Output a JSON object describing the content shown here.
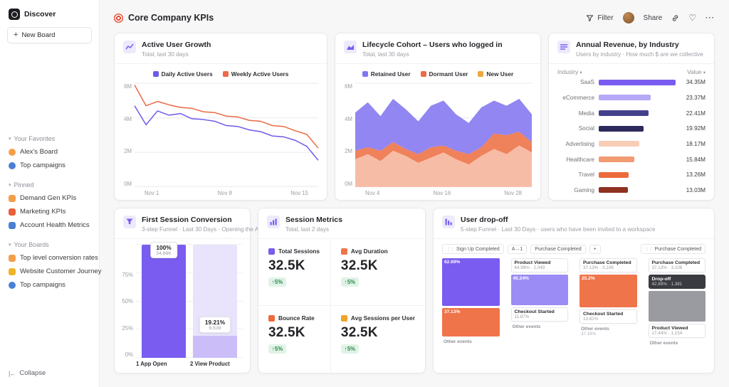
{
  "sidebar": {
    "discover_label": "Discover",
    "new_board_label": "New Board",
    "collapse_label": "Collapse",
    "sections": [
      {
        "title": "Your Favorites",
        "items": [
          {
            "label": "Alex's Board",
            "icon": "board-icon",
            "color": "#f59e49",
            "shape": "circle"
          },
          {
            "label": "Top campaigns",
            "icon": "campaign-icon",
            "color": "#4a7fd4",
            "shape": "circle"
          }
        ]
      },
      {
        "title": "Pinned",
        "items": [
          {
            "label": "Demand Gen KPIs",
            "icon": "folder-icon",
            "color": "#f59e49",
            "shape": "square"
          },
          {
            "label": "Marketing KPIs",
            "icon": "chart-icon",
            "color": "#e8603c",
            "shape": "square"
          },
          {
            "label": "Account Health Metrics",
            "icon": "health-icon",
            "color": "#4a7fd4",
            "shape": "square"
          }
        ]
      },
      {
        "title": "Your Boards",
        "items": [
          {
            "label": "Top level conversion rates",
            "icon": "funnel-icon",
            "color": "#f59e49",
            "shape": "square"
          },
          {
            "label": "Website Customer Journey",
            "icon": "journey-icon",
            "color": "#f0b429",
            "shape": "square"
          },
          {
            "label": "Top campaigns",
            "icon": "campaign-icon",
            "color": "#4a7fd4",
            "shape": "circle"
          }
        ]
      }
    ]
  },
  "header": {
    "title": "Core Company KPIs",
    "filter_label": "Filter",
    "share_label": "Share"
  },
  "cards": {
    "active": {
      "title": "Active User Growth",
      "subtitle": "Total, last 30 days"
    },
    "lifecycle": {
      "title": "Lifecycle Cohort – Users who logged in",
      "subtitle": "Total, last 30 days"
    },
    "revenue": {
      "title": "Annual Revenue, by Industry",
      "subtitle": "Users by industry · How much $ are we collective",
      "col_industry": "Industry",
      "col_value": "Value"
    },
    "funnel": {
      "title": "First Session Conversion",
      "subtitle": "3-step Funnel · Last 30 Days · Opening the A..."
    },
    "metrics": {
      "title": "Session Metrics",
      "subtitle": "Total, last 2 days"
    },
    "dropoff": {
      "title": "User drop-off",
      "subtitle": "5-step Funnel · Last 30 Days · users who have been invited to a workspace"
    }
  },
  "chart_data": [
    {
      "id": "active_user_growth",
      "type": "line",
      "title": "Active User Growth",
      "x_tick_labels": [
        "Nov 1",
        "Nov 8",
        "Nov 15"
      ],
      "y_tick_labels": [
        "6M",
        "4M",
        "2M",
        "0M"
      ],
      "ymax": 6,
      "series": [
        {
          "name": "Daily Active Users",
          "color": "#6d5be8",
          "values": [
            4.7,
            3.6,
            4.4,
            4.15,
            4.25,
            3.95,
            3.9,
            3.8,
            3.55,
            3.5,
            3.3,
            3.2,
            2.95,
            2.9,
            2.7,
            2.35,
            1.55
          ]
        },
        {
          "name": "Weekly Active Users",
          "color": "#ec6a45",
          "values": [
            5.9,
            4.7,
            4.95,
            4.75,
            4.6,
            4.55,
            4.35,
            4.3,
            4.1,
            4.05,
            3.85,
            3.8,
            3.55,
            3.5,
            3.25,
            3.05,
            2.25
          ]
        }
      ]
    },
    {
      "id": "lifecycle_cohort",
      "type": "area",
      "title": "Lifecycle Cohort – Users who logged in",
      "x_tick_labels": [
        "Nov 4",
        "Nov 16",
        "Nov 28"
      ],
      "y_tick_labels": [
        "6M",
        "4M",
        "2M",
        "0M"
      ],
      "ymax": 6,
      "legend": [
        {
          "name": "Retained User",
          "color": "#8276f0"
        },
        {
          "name": "Dormant User",
          "color": "#ec6a45"
        },
        {
          "name": "New User",
          "color": "#f2a53d"
        }
      ],
      "series_bottom_to_top": [
        {
          "name": "New User",
          "color": "#f7bca6",
          "values": [
            1.6,
            1.9,
            1.5,
            2.1,
            1.8,
            1.4,
            1.7,
            2.0,
            1.6,
            1.3,
            1.8,
            2.2,
            1.9,
            2.4,
            2.0
          ]
        },
        {
          "name": "Dormant User",
          "color": "#ef815b",
          "values": [
            0.5,
            0.4,
            0.6,
            0.5,
            0.4,
            0.5,
            0.6,
            0.4,
            0.5,
            0.6,
            0.5,
            0.9,
            1.1,
            0.8,
            0.6
          ]
        },
        {
          "name": "Retained User",
          "color": "#9186f2",
          "values": [
            2.2,
            2.6,
            2.0,
            2.5,
            2.3,
            1.9,
            2.4,
            2.6,
            2.1,
            1.8,
            2.3,
            1.9,
            1.7,
            1.9,
            1.6
          ]
        }
      ]
    },
    {
      "id": "annual_revenue",
      "type": "bar",
      "title": "Annual Revenue, by Industry",
      "max": 34.35,
      "rows": [
        {
          "label": "SaaS",
          "value": 34.35,
          "value_label": "34.35M",
          "color": "#7a5cf0"
        },
        {
          "label": "eCommerce",
          "value": 23.37,
          "value_label": "23.37M",
          "color": "#b7a8f8"
        },
        {
          "label": "Media",
          "value": 22.41,
          "value_label": "22.41M",
          "color": "#45408c"
        },
        {
          "label": "Social",
          "value": 19.92,
          "value_label": "19.92M",
          "color": "#2c2a5c"
        },
        {
          "label": "Advertising",
          "value": 18.17,
          "value_label": "18.17M",
          "color": "#f8cdb6"
        },
        {
          "label": "Healthcare",
          "value": 15.84,
          "value_label": "15.84M",
          "color": "#f29b72"
        },
        {
          "label": "Travel",
          "value": 13.26,
          "value_label": "13.26M",
          "color": "#ec6a3c"
        },
        {
          "label": "Gaming",
          "value": 13.03,
          "value_label": "13.03M",
          "color": "#8e3120"
        }
      ]
    },
    {
      "id": "first_session_conversion",
      "type": "funnel-bar",
      "y_tick_labels": [
        "75%",
        "50%",
        "25%",
        "0%"
      ],
      "steps": [
        {
          "label": "1 App Open",
          "pct": 100,
          "pct_label": "100%",
          "value_label": "34.88K"
        },
        {
          "label": "2 View Product",
          "pct": 19.21,
          "pct_label": "19.21%",
          "value_label": "6,539"
        }
      ]
    },
    {
      "id": "session_metrics",
      "type": "metrics",
      "items": [
        {
          "label": "Total Sessions",
          "color": "#7a5cf0",
          "value": "32.5K",
          "change": "↑5%"
        },
        {
          "label": "Avg Duration",
          "color": "#f0744a",
          "value": "32.5K",
          "change": "↑5%"
        },
        {
          "label": "Bounce Rate",
          "color": "#ec6a3c",
          "value": "32.5K",
          "change": "↑5%"
        },
        {
          "label": "Avg Sessions per User",
          "color": "#f0a32c",
          "value": "32.5K",
          "change": "↑5%"
        }
      ]
    },
    {
      "id": "user_dropoff",
      "type": "funnel-flow",
      "step_chips": [
        {
          "label": "Sign Up Completed",
          "grip": true
        },
        {
          "label": "A→1",
          "grip": false
        },
        {
          "label": "Purchase Completed",
          "grip": false
        },
        {
          "label": "+",
          "grip": false
        },
        {
          "label": "Purchase Completed",
          "grip": true
        }
      ],
      "columns": [
        {
          "items": [
            {
              "type": "bar",
              "color": "#7a5cf0",
              "label": "62.69%",
              "h": 44
            },
            {
              "type": "bar",
              "color": "#f0744a",
              "label": "37.13%",
              "h": 26
            },
            {
              "type": "note",
              "title": "Other events",
              "detail": ""
            }
          ]
        },
        {
          "items": [
            {
              "type": "chip",
              "title": "Product Viewed",
              "detail": "64.99% · 2,049"
            },
            {
              "type": "bar",
              "color": "#9b8cf5",
              "label": "45.24%",
              "h": 28
            },
            {
              "type": "chip",
              "title": "Checkout Started",
              "detail": "11.87%"
            },
            {
              "type": "note",
              "title": "Other events",
              "detail": ""
            }
          ]
        },
        {
          "items": [
            {
              "type": "chip",
              "title": "Purchase Completed",
              "detail": "37.13% · 3,106"
            },
            {
              "type": "bar",
              "color": "#f0744a",
              "label": "25.2%",
              "h": 30
            },
            {
              "type": "chip",
              "title": "Checkout Started",
              "detail": "13.81%"
            },
            {
              "type": "note",
              "title": "Other events",
              "detail": "37.18%"
            }
          ]
        },
        {
          "items": [
            {
              "type": "chip",
              "title": "Purchase Completed",
              "detail": "37.13% · 3,106"
            },
            {
              "type": "chip-dark",
              "title": "Drop-off",
              "detail": "42.89% · 1,381"
            },
            {
              "type": "bar",
              "color": "#9a9ba1",
              "label": "",
              "h": 28
            },
            {
              "type": "chip",
              "title": "Product Viewed",
              "detail": "17.44% · 1,154"
            },
            {
              "type": "note",
              "title": "Other events",
              "detail": ""
            }
          ]
        }
      ]
    }
  ]
}
